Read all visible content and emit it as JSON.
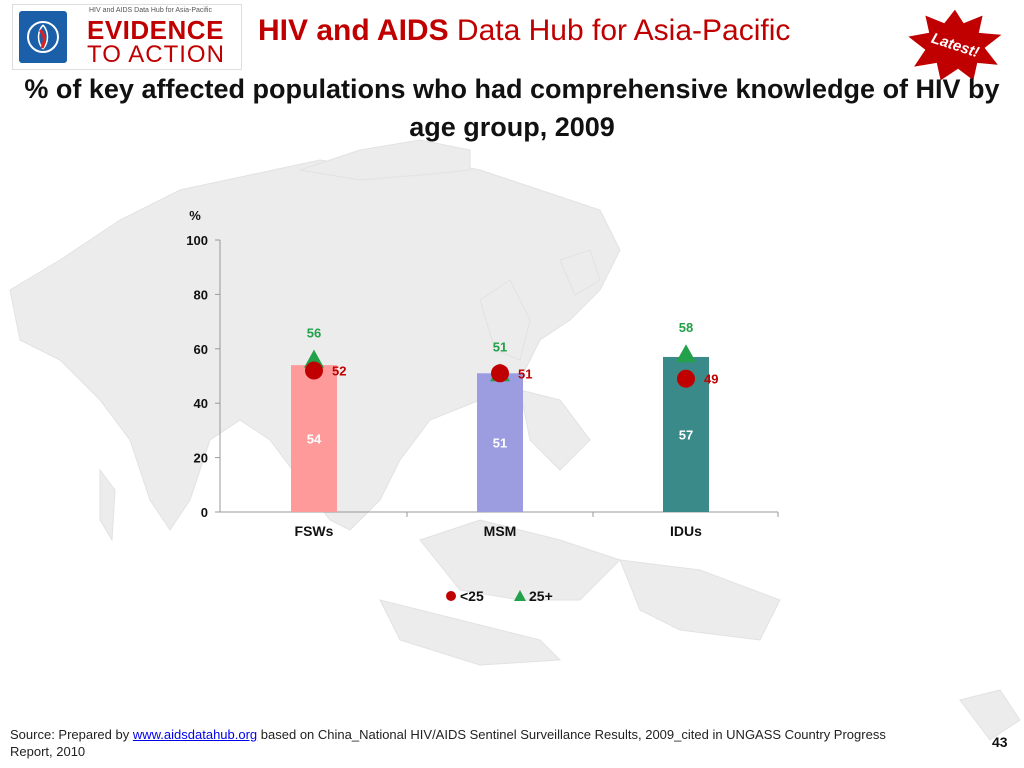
{
  "header": {
    "logo_tagline": "HIV and AIDS Data Hub for Asia-Pacific",
    "logo_line1": "EVIDENCE",
    "logo_line2": "TO ACTION",
    "title_bold": "HIV and AIDS",
    "title_rest": " Data Hub for Asia-Pacific",
    "badge": "Latest!"
  },
  "colors": {
    "brand_red": "#c00000",
    "bar_fsw": "#ff9a9a",
    "bar_msm": "#9c9ce0",
    "bar_idu": "#3a8a8a",
    "marker_under25": "#c00000",
    "marker_25plus": "#22a04a"
  },
  "chart_data": {
    "type": "bar",
    "title": "% of key affected populations who had comprehensive knowledge of HIV by age group, 2009",
    "ylabel": "%",
    "ylim": [
      0,
      100
    ],
    "yticks": [
      0,
      20,
      40,
      60,
      80,
      100
    ],
    "categories": [
      "FSWs",
      "MSM",
      "IDUs"
    ],
    "values": [
      54,
      51,
      57
    ],
    "series": [
      {
        "name": "<25",
        "marker": "circle",
        "values": [
          52,
          51,
          49
        ]
      },
      {
        "name": "25+",
        "marker": "triangle",
        "values": [
          56,
          51,
          58
        ]
      }
    ],
    "legend_position": "bottom"
  },
  "footer": {
    "source_prefix": "Source: Prepared by ",
    "source_link": "www.aidsdatahub.org",
    "source_suffix": "  based on China_National HIV/AIDS Sentinel Surveillance Results, 2009_cited in UNGASS Country Progress Report, 2010",
    "page_number": "43"
  }
}
